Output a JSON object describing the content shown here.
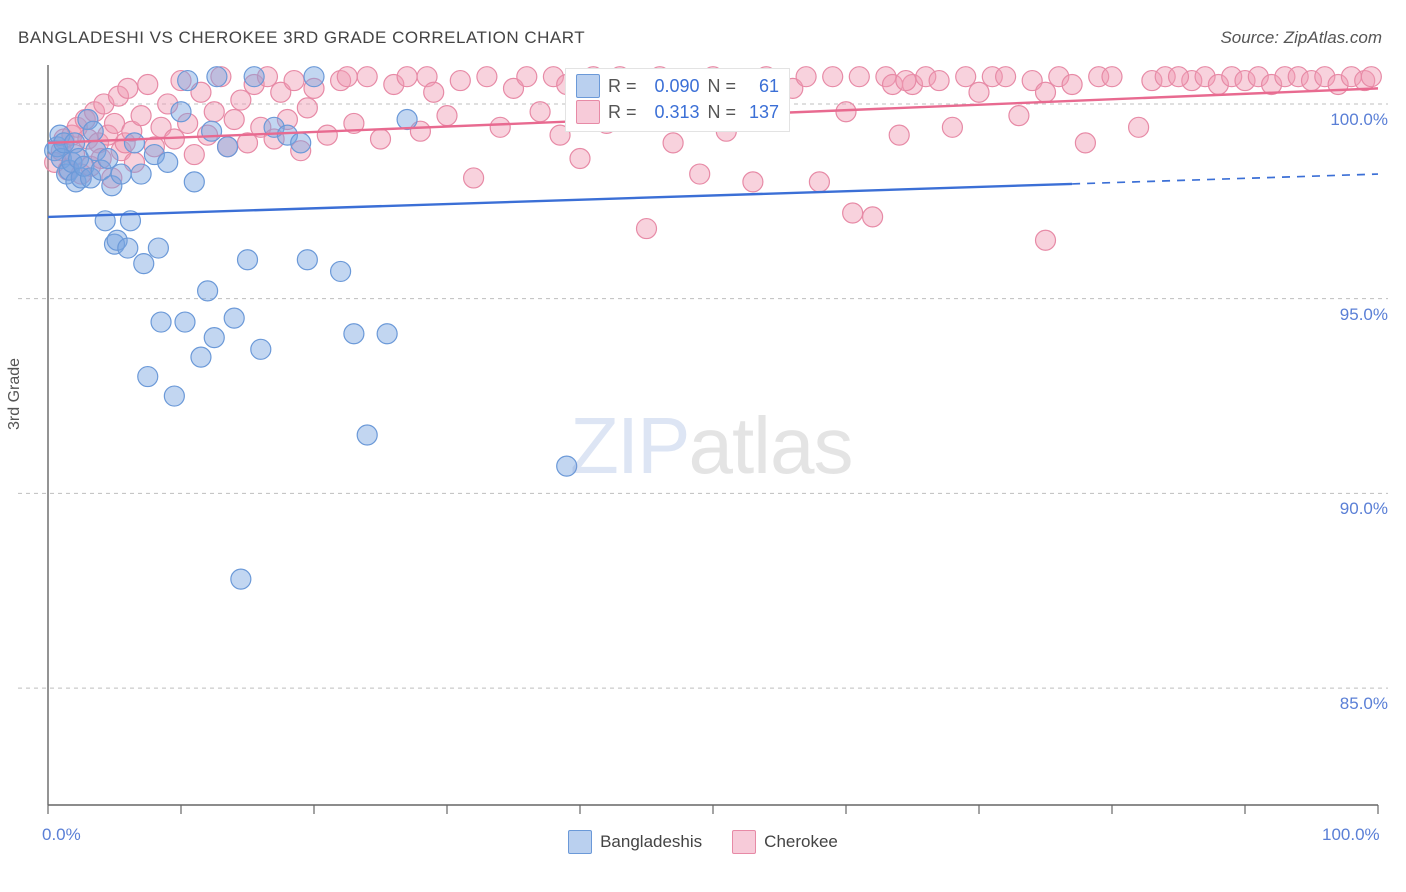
{
  "title": "BANGLADESHI VS CHEROKEE 3RD GRADE CORRELATION CHART",
  "source": "Source: ZipAtlas.com",
  "ylabel": "3rd Grade",
  "watermark": {
    "part1": "ZIP",
    "part2": "atlas"
  },
  "chart": {
    "type": "scatter",
    "xlim": [
      0,
      100
    ],
    "ylim": [
      82,
      101
    ],
    "ytick_values": [
      85,
      90,
      95,
      100
    ],
    "ytick_labels": [
      "85.0%",
      "90.0%",
      "95.0%",
      "100.0%"
    ],
    "xtick_values": [
      0,
      10,
      20,
      30,
      40,
      50,
      60,
      70,
      80,
      90,
      100
    ],
    "xtick_labels_shown": {
      "0": "0.0%",
      "100": "100.0%"
    },
    "background_color": "#ffffff",
    "grid_color": "#bfbfbf",
    "axis_color": "#666666",
    "marker_radius": 10,
    "marker_stroke_width": 1.2,
    "line_width": 2.4,
    "series": {
      "bangladeshis": {
        "label": "Bangladeshis",
        "fill_color": "rgba(120, 165, 225, 0.45)",
        "stroke_color": "#6b99d8",
        "line_color": "#3b6fd6",
        "legend_fill": "rgba(130, 170, 225, 0.55)",
        "legend_border": "#6b99d8",
        "stats": {
          "R": "0.090",
          "N": "61"
        },
        "trend": {
          "x1": 0,
          "y1": 97.1,
          "x2": 100,
          "y2": 98.2,
          "solid_until_x": 77
        },
        "points": [
          [
            0.5,
            98.8
          ],
          [
            0.7,
            98.9
          ],
          [
            0.9,
            99.2
          ],
          [
            1.0,
            98.6
          ],
          [
            1.2,
            99.0
          ],
          [
            1.4,
            98.2
          ],
          [
            1.6,
            98.3
          ],
          [
            1.8,
            98.5
          ],
          [
            2.0,
            99.0
          ],
          [
            2.1,
            98.0
          ],
          [
            2.3,
            98.6
          ],
          [
            2.5,
            98.1
          ],
          [
            2.7,
            98.4
          ],
          [
            3.0,
            99.6
          ],
          [
            3.2,
            98.1
          ],
          [
            3.4,
            99.3
          ],
          [
            3.6,
            98.8
          ],
          [
            4.0,
            98.3
          ],
          [
            4.3,
            97.0
          ],
          [
            4.5,
            98.6
          ],
          [
            4.8,
            97.9
          ],
          [
            5.0,
            96.4
          ],
          [
            5.2,
            96.5
          ],
          [
            5.5,
            98.2
          ],
          [
            6.0,
            96.3
          ],
          [
            6.2,
            97.0
          ],
          [
            6.5,
            99.0
          ],
          [
            7.0,
            98.2
          ],
          [
            7.2,
            95.9
          ],
          [
            7.5,
            93.0
          ],
          [
            8.0,
            98.7
          ],
          [
            8.3,
            96.3
          ],
          [
            8.5,
            94.4
          ],
          [
            9.0,
            98.5
          ],
          [
            9.5,
            92.5
          ],
          [
            10.0,
            99.8
          ],
          [
            10.3,
            94.4
          ],
          [
            10.5,
            100.6
          ],
          [
            11.0,
            98.0
          ],
          [
            11.5,
            93.5
          ],
          [
            12.0,
            95.2
          ],
          [
            12.3,
            99.3
          ],
          [
            12.5,
            94.0
          ],
          [
            12.7,
            100.7
          ],
          [
            13.5,
            98.9
          ],
          [
            14.0,
            94.5
          ],
          [
            14.5,
            87.8
          ],
          [
            15.0,
            96.0
          ],
          [
            15.5,
            100.7
          ],
          [
            16.0,
            93.7
          ],
          [
            17.0,
            99.4
          ],
          [
            18.0,
            99.2
          ],
          [
            19.0,
            99.0
          ],
          [
            19.5,
            96.0
          ],
          [
            20.0,
            100.7
          ],
          [
            22.0,
            95.7
          ],
          [
            23.0,
            94.1
          ],
          [
            24.0,
            91.5
          ],
          [
            25.5,
            94.1
          ],
          [
            27.0,
            99.6
          ],
          [
            39.0,
            90.7
          ]
        ]
      },
      "cherokee": {
        "label": "Cherokee",
        "fill_color": "rgba(240, 155, 180, 0.45)",
        "stroke_color": "#e78aa6",
        "line_color": "#e86a90",
        "legend_fill": "rgba(240, 160, 185, 0.55)",
        "legend_border": "#e78aa6",
        "stats": {
          "R": "0.313",
          "N": "137"
        },
        "trend": {
          "x1": 0,
          "y1": 99.0,
          "x2": 100,
          "y2": 100.4,
          "solid_until_x": 100
        },
        "points": [
          [
            0.5,
            98.5
          ],
          [
            1.0,
            98.8
          ],
          [
            1.2,
            99.1
          ],
          [
            1.5,
            98.3
          ],
          [
            1.8,
            99.2
          ],
          [
            2.0,
            98.7
          ],
          [
            2.2,
            99.4
          ],
          [
            2.5,
            98.2
          ],
          [
            2.8,
            99.6
          ],
          [
            3.0,
            99.1
          ],
          [
            3.2,
            98.4
          ],
          [
            3.5,
            99.8
          ],
          [
            3.8,
            99.0
          ],
          [
            4.0,
            98.6
          ],
          [
            4.2,
            100.0
          ],
          [
            4.5,
            99.2
          ],
          [
            4.8,
            98.1
          ],
          [
            5.0,
            99.5
          ],
          [
            5.3,
            100.2
          ],
          [
            5.5,
            98.8
          ],
          [
            5.8,
            99.0
          ],
          [
            6.0,
            100.4
          ],
          [
            6.3,
            99.3
          ],
          [
            6.5,
            98.5
          ],
          [
            7.0,
            99.7
          ],
          [
            7.5,
            100.5
          ],
          [
            8.0,
            98.9
          ],
          [
            8.5,
            99.4
          ],
          [
            9.0,
            100.0
          ],
          [
            9.5,
            99.1
          ],
          [
            10.0,
            100.6
          ],
          [
            10.5,
            99.5
          ],
          [
            11.0,
            98.7
          ],
          [
            11.5,
            100.3
          ],
          [
            12.0,
            99.2
          ],
          [
            12.5,
            99.8
          ],
          [
            13.0,
            100.7
          ],
          [
            13.5,
            98.9
          ],
          [
            14.0,
            99.6
          ],
          [
            14.5,
            100.1
          ],
          [
            15.0,
            99.0
          ],
          [
            15.5,
            100.5
          ],
          [
            16.0,
            99.4
          ],
          [
            16.5,
            100.7
          ],
          [
            17.0,
            99.1
          ],
          [
            17.5,
            100.3
          ],
          [
            18.0,
            99.6
          ],
          [
            18.5,
            100.6
          ],
          [
            19.0,
            98.8
          ],
          [
            19.5,
            99.9
          ],
          [
            20.0,
            100.4
          ],
          [
            21.0,
            99.2
          ],
          [
            22.0,
            100.6
          ],
          [
            22.5,
            100.7
          ],
          [
            23.0,
            99.5
          ],
          [
            24.0,
            100.7
          ],
          [
            25.0,
            99.1
          ],
          [
            26.0,
            100.5
          ],
          [
            27.0,
            100.7
          ],
          [
            28.0,
            99.3
          ],
          [
            28.5,
            100.7
          ],
          [
            29.0,
            100.3
          ],
          [
            30.0,
            99.7
          ],
          [
            31.0,
            100.6
          ],
          [
            32.0,
            98.1
          ],
          [
            33.0,
            100.7
          ],
          [
            34.0,
            99.4
          ],
          [
            35.0,
            100.4
          ],
          [
            36.0,
            100.7
          ],
          [
            37.0,
            99.8
          ],
          [
            38.0,
            100.7
          ],
          [
            38.5,
            99.2
          ],
          [
            39.0,
            100.5
          ],
          [
            40.0,
            98.6
          ],
          [
            41.0,
            100.7
          ],
          [
            42.0,
            99.5
          ],
          [
            43.0,
            100.7
          ],
          [
            44.0,
            100.2
          ],
          [
            45.0,
            96.8
          ],
          [
            46.0,
            100.7
          ],
          [
            47.0,
            99.0
          ],
          [
            48.0,
            100.5
          ],
          [
            49.0,
            98.2
          ],
          [
            50.0,
            100.7
          ],
          [
            51.0,
            99.3
          ],
          [
            52.0,
            100.6
          ],
          [
            53.0,
            98.0
          ],
          [
            54.0,
            100.7
          ],
          [
            55.0,
            99.6
          ],
          [
            56.0,
            100.4
          ],
          [
            57.0,
            100.7
          ],
          [
            58.0,
            98.0
          ],
          [
            59.0,
            100.7
          ],
          [
            60.0,
            99.8
          ],
          [
            61.0,
            100.7
          ],
          [
            62.0,
            97.1
          ],
          [
            63.0,
            100.7
          ],
          [
            64.0,
            99.2
          ],
          [
            65.0,
            100.5
          ],
          [
            66.0,
            100.7
          ],
          [
            67.0,
            100.6
          ],
          [
            68.0,
            99.4
          ],
          [
            69.0,
            100.7
          ],
          [
            70.0,
            100.3
          ],
          [
            71.0,
            100.7
          ],
          [
            72.0,
            100.7
          ],
          [
            73.0,
            99.7
          ],
          [
            74.0,
            100.6
          ],
          [
            75.0,
            96.5
          ],
          [
            76.0,
            100.7
          ],
          [
            77.0,
            100.5
          ],
          [
            78.0,
            99.0
          ],
          [
            79.0,
            100.7
          ],
          [
            80.0,
            100.7
          ],
          [
            82.0,
            99.4
          ],
          [
            83.0,
            100.6
          ],
          [
            84.0,
            100.7
          ],
          [
            86.0,
            100.6
          ],
          [
            87.0,
            100.7
          ],
          [
            88.0,
            100.5
          ],
          [
            89.0,
            100.7
          ],
          [
            90.0,
            100.6
          ],
          [
            91.0,
            100.7
          ],
          [
            92.0,
            100.5
          ],
          [
            93.0,
            100.7
          ],
          [
            94.0,
            100.7
          ],
          [
            95.0,
            100.6
          ],
          [
            96.0,
            100.7
          ],
          [
            97.0,
            100.5
          ],
          [
            98.0,
            100.7
          ],
          [
            99.0,
            100.6
          ],
          [
            99.5,
            100.7
          ],
          [
            75.0,
            100.3
          ],
          [
            60.5,
            97.2
          ],
          [
            63.5,
            100.5
          ],
          [
            64.5,
            100.6
          ],
          [
            85.0,
            100.7
          ]
        ]
      }
    }
  },
  "stats_labels": {
    "R": "R =",
    "N": "N ="
  }
}
